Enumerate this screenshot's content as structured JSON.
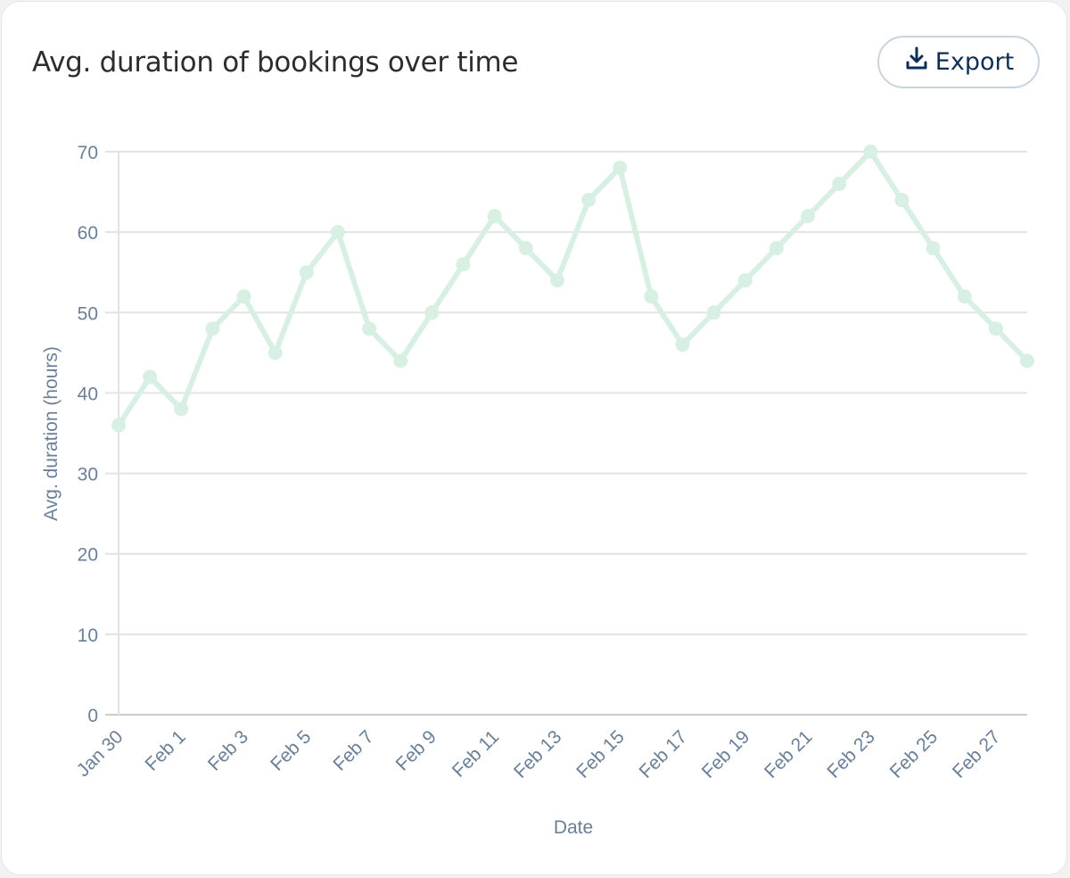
{
  "header": {
    "title": "Avg. duration of bookings over time",
    "export_label": "Export",
    "export_icon": "download-icon"
  },
  "colors": {
    "line": "#d8f0e3",
    "grid": "#e3e3e3",
    "axis_text": "#6a7f98",
    "button_text": "#0f2e55",
    "button_border": "#c9d4e0"
  },
  "chart_data": {
    "type": "line",
    "title": "Avg. duration of bookings over time",
    "xlabel": "Date",
    "ylabel": "Avg. duration (hours)",
    "ylim": [
      0,
      70
    ],
    "yticks": [
      0,
      10,
      20,
      30,
      40,
      50,
      60,
      70
    ],
    "grid": true,
    "legend": null,
    "x": [
      "Jan 30",
      "Jan 31",
      "Feb 1",
      "Feb 2",
      "Feb 3",
      "Feb 4",
      "Feb 5",
      "Feb 6",
      "Feb 7",
      "Feb 8",
      "Feb 9",
      "Feb 10",
      "Feb 11",
      "Feb 12",
      "Feb 13",
      "Feb 14",
      "Feb 15",
      "Feb 16",
      "Feb 17",
      "Feb 18",
      "Feb 19",
      "Feb 20",
      "Feb 21",
      "Feb 22",
      "Feb 23",
      "Feb 24",
      "Feb 25",
      "Feb 26",
      "Feb 27",
      "Feb 28"
    ],
    "xtick_labels": [
      "Jan 30",
      "Feb 1",
      "Feb 3",
      "Feb 5",
      "Feb 7",
      "Feb 9",
      "Feb 11",
      "Feb 13",
      "Feb 15",
      "Feb 17",
      "Feb 19",
      "Feb 21",
      "Feb 23",
      "Feb 25",
      "Feb 27"
    ],
    "series": [
      {
        "name": "Avg. duration (hours)",
        "values": [
          36,
          42,
          38,
          48,
          52,
          45,
          55,
          60,
          48,
          44,
          50,
          56,
          62,
          58,
          54,
          64,
          68,
          52,
          46,
          50,
          54,
          58,
          62,
          66,
          70,
          64,
          58,
          52,
          48,
          44
        ]
      }
    ]
  }
}
